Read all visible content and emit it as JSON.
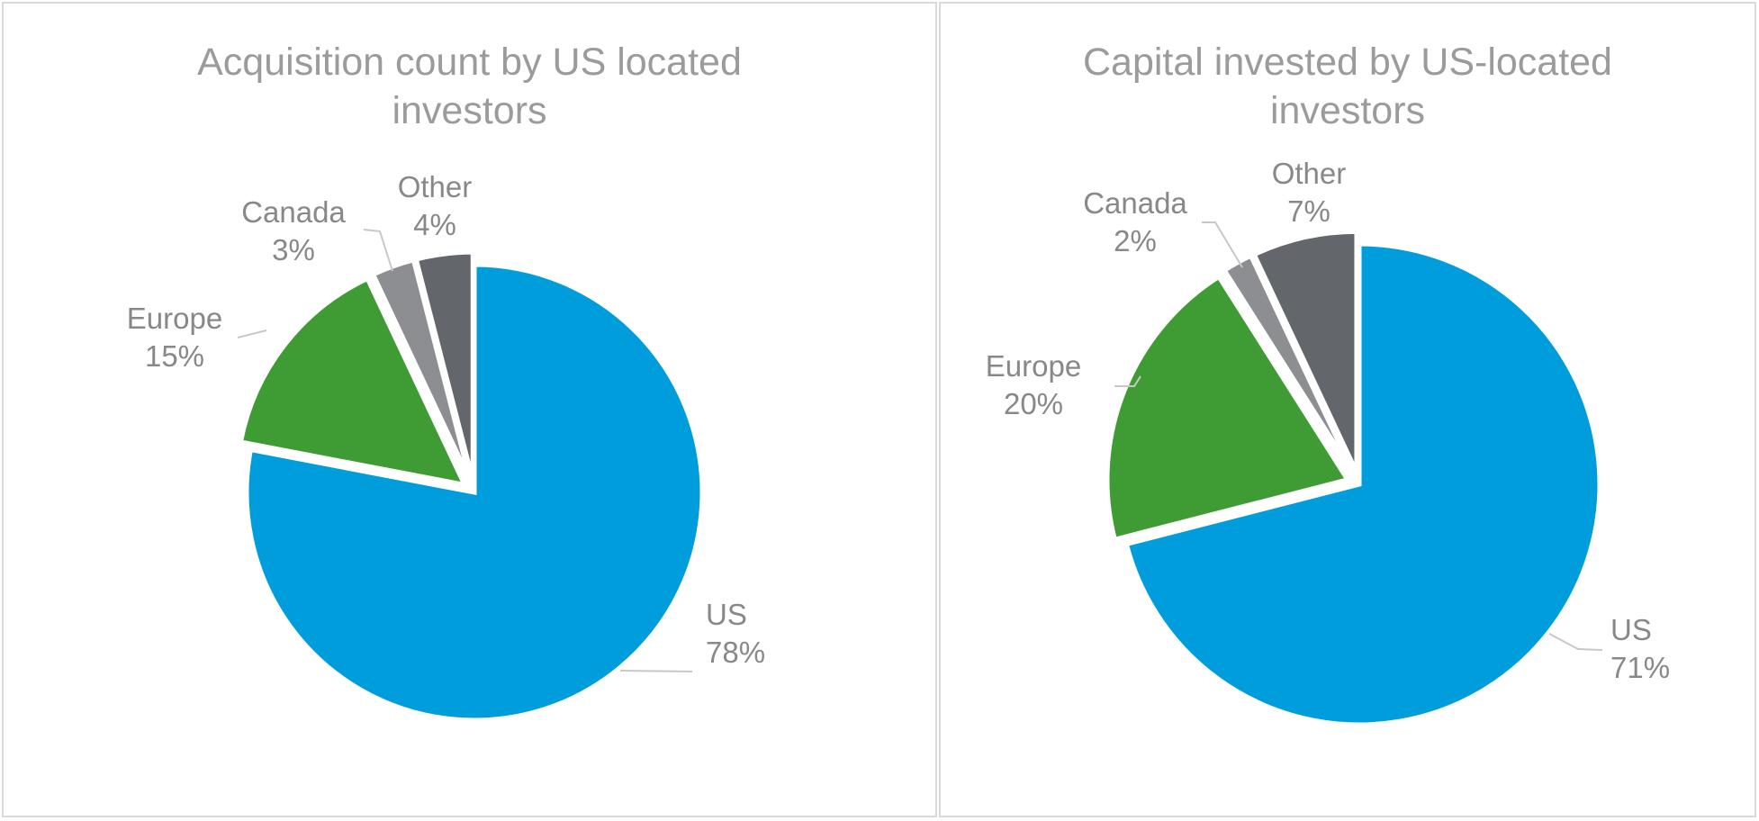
{
  "chart_data": [
    {
      "type": "pie",
      "title": "Acquisition count by US located investors",
      "categories": [
        "US",
        "Europe",
        "Canada",
        "Other"
      ],
      "values": [
        78,
        15,
        3,
        4
      ],
      "labels": [
        "78%",
        "15%",
        "3%",
        "4%"
      ],
      "colors": [
        "#009ddc",
        "#3f9c35",
        "#8c8e91",
        "#63666a"
      ],
      "exploded": [
        "Europe",
        "Canada",
        "Other"
      ],
      "legend": "none",
      "data_labels": "outside-with-leader-lines"
    },
    {
      "type": "pie",
      "title": "Capital invested by US-located investors",
      "categories": [
        "US",
        "Europe",
        "Canada",
        "Other"
      ],
      "values": [
        71,
        20,
        2,
        7
      ],
      "labels": [
        "71%",
        "20%",
        "2%",
        "7%"
      ],
      "colors": [
        "#009ddc",
        "#3f9c35",
        "#8c8e91",
        "#63666a"
      ],
      "exploded": [
        "Europe",
        "Canada",
        "Other"
      ],
      "legend": "none",
      "data_labels": "outside-with-leader-lines"
    }
  ]
}
